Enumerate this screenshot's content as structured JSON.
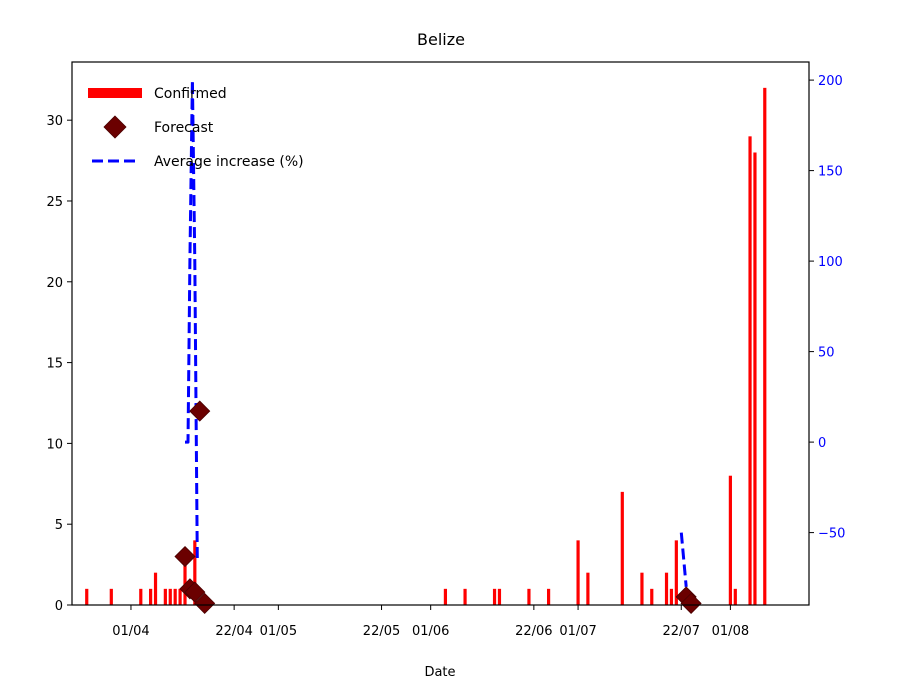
{
  "chart_data": {
    "type": "bar",
    "title": "Belize",
    "xlabel": "Date",
    "ylabel": "",
    "y2label": "",
    "ylim": [
      0,
      33.6
    ],
    "y2lim": [
      -90,
      210
    ],
    "x_range": [
      "2020-03-20",
      "2020-08-17"
    ],
    "x_ticks": [
      "2020-04-01",
      "2020-04-22",
      "2020-05-01",
      "2020-05-22",
      "2020-06-01",
      "2020-06-22",
      "2020-07-01",
      "2020-07-22",
      "2020-08-01"
    ],
    "x_tick_labels": [
      "01/04",
      "22/04",
      "01/05",
      "22/05",
      "01/06",
      "22/06",
      "01/07",
      "22/07",
      "01/08"
    ],
    "y_ticks": [
      0,
      5,
      10,
      15,
      20,
      25,
      30
    ],
    "y2_ticks": [
      -50,
      0,
      50,
      100,
      150,
      200
    ],
    "legend_position": "upper-left",
    "legend": [
      {
        "label": "Confirmed",
        "marker": "bar"
      },
      {
        "label": "Forecast",
        "marker": "diamond"
      },
      {
        "label": "Average increase (%)",
        "marker": "dashed-line"
      }
    ],
    "series": [
      {
        "name": "Confirmed",
        "kind": "bar",
        "axis": "left",
        "color": "#ff0000",
        "points": [
          [
            "2020-03-23",
            1
          ],
          [
            "2020-03-28",
            1
          ],
          [
            "2020-04-03",
            1
          ],
          [
            "2020-04-05",
            1
          ],
          [
            "2020-04-06",
            2
          ],
          [
            "2020-04-08",
            1
          ],
          [
            "2020-04-09",
            1
          ],
          [
            "2020-04-10",
            1
          ],
          [
            "2020-04-11",
            1
          ],
          [
            "2020-04-12",
            3
          ],
          [
            "2020-04-14",
            4
          ],
          [
            "2020-06-04",
            1
          ],
          [
            "2020-06-08",
            1
          ],
          [
            "2020-06-14",
            1
          ],
          [
            "2020-06-15",
            1
          ],
          [
            "2020-06-21",
            1
          ],
          [
            "2020-06-25",
            1
          ],
          [
            "2020-07-01",
            4
          ],
          [
            "2020-07-03",
            2
          ],
          [
            "2020-07-10",
            7
          ],
          [
            "2020-07-14",
            2
          ],
          [
            "2020-07-16",
            1
          ],
          [
            "2020-07-19",
            2
          ],
          [
            "2020-07-20",
            1
          ],
          [
            "2020-07-21",
            4
          ],
          [
            "2020-08-01",
            8
          ],
          [
            "2020-08-02",
            1
          ],
          [
            "2020-08-05",
            29
          ],
          [
            "2020-08-06",
            28
          ],
          [
            "2020-08-08",
            32
          ]
        ]
      },
      {
        "name": "Forecast",
        "kind": "scatter",
        "axis": "left",
        "color": "#6b0000",
        "points": [
          [
            "2020-04-12",
            3
          ],
          [
            "2020-04-13",
            1
          ],
          [
            "2020-04-14",
            0.8
          ],
          [
            "2020-04-15",
            12
          ],
          [
            "2020-04-16",
            0.1
          ],
          [
            "2020-07-23",
            0.5
          ],
          [
            "2020-07-24",
            0.1
          ]
        ]
      },
      {
        "name": "Average increase (%)",
        "kind": "line",
        "axis": "right",
        "color": "#0000ff",
        "segments": [
          [
            [
              "2020-04-12",
              0
            ],
            [
              "2020-04-12.6",
              0
            ],
            [
              "2020-04-13",
              100
            ],
            [
              "2020-04-13.5",
              200
            ],
            [
              "2020-04-14",
              100
            ],
            [
              "2020-04-14.5",
              -65
            ]
          ],
          [
            [
              "2020-07-22",
              -50
            ],
            [
              "2020-07-23",
              -80
            ]
          ]
        ]
      }
    ]
  }
}
